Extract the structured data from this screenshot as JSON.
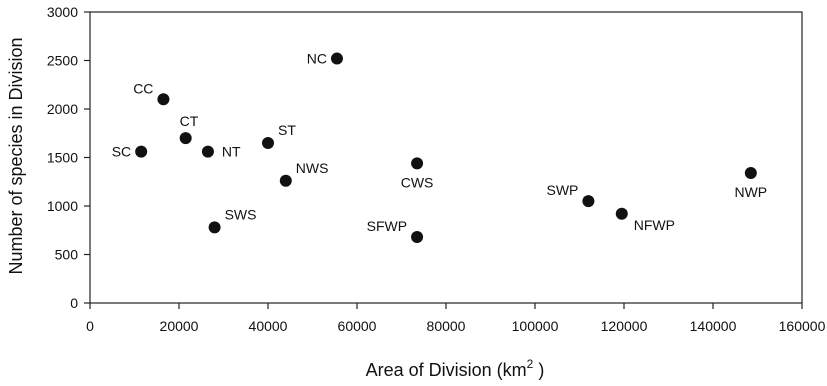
{
  "chart_data": {
    "type": "scatter",
    "xlabel": "Area of Division (km",
    "xlabel_sup": "2",
    "xlabel_suffix": " )",
    "ylabel": "Number of species in Division",
    "xlim": [
      0,
      160000
    ],
    "ylim": [
      0,
      3000
    ],
    "x_ticks": [
      0,
      20000,
      40000,
      60000,
      80000,
      100000,
      120000,
      140000,
      160000
    ],
    "y_ticks": [
      0,
      500,
      1000,
      1500,
      2000,
      2500,
      3000
    ],
    "x_tick_labels": [
      "0",
      "20000",
      "40000",
      "60000",
      "80000",
      "100000",
      "120000",
      "140000",
      "160000"
    ],
    "y_tick_labels": [
      "0",
      "500",
      "1000",
      "1500",
      "2000",
      "2500",
      "3000"
    ],
    "grid": false,
    "marker_color": "#111111",
    "points": [
      {
        "label": "NC",
        "x": 55500,
        "y": 2520,
        "label_pos": "left"
      },
      {
        "label": "CC",
        "x": 16500,
        "y": 2100,
        "label_pos": "upper-left"
      },
      {
        "label": "CT",
        "x": 21500,
        "y": 1700,
        "label_pos": "above"
      },
      {
        "label": "SC",
        "x": 11500,
        "y": 1560,
        "label_pos": "left"
      },
      {
        "label": "NT",
        "x": 26500,
        "y": 1560,
        "label_pos": "right"
      },
      {
        "label": "ST",
        "x": 40000,
        "y": 1650,
        "label_pos": "upper-right"
      },
      {
        "label": "CWS",
        "x": 73500,
        "y": 1440,
        "label_pos": "below"
      },
      {
        "label": "NWS",
        "x": 44000,
        "y": 1260,
        "label_pos": "upper-right"
      },
      {
        "label": "NWP",
        "x": 148500,
        "y": 1340,
        "label_pos": "below"
      },
      {
        "label": "SWP",
        "x": 112000,
        "y": 1050,
        "label_pos": "upper-left"
      },
      {
        "label": "NFWP",
        "x": 119500,
        "y": 920,
        "label_pos": "lower-right"
      },
      {
        "label": "SWS",
        "x": 28000,
        "y": 780,
        "label_pos": "upper-right"
      },
      {
        "label": "SFWP",
        "x": 73500,
        "y": 680,
        "label_pos": "upper-left"
      }
    ]
  }
}
